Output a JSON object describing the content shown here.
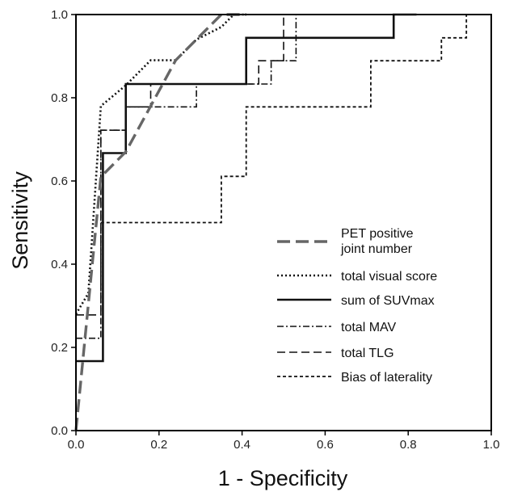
{
  "chart_data": {
    "type": "line",
    "title": "",
    "xlabel": "1 - Specificity",
    "ylabel": "Sensitivity",
    "xlim": [
      0,
      1
    ],
    "ylim": [
      0,
      1
    ],
    "xticks": [
      "0.0",
      "0.2",
      "0.4",
      "0.6",
      "0.8",
      "1.0"
    ],
    "yticks": [
      "0.0",
      "0.2",
      "0.4",
      "0.6",
      "0.8",
      "1.0"
    ],
    "grid": false,
    "legend_position": "bottom-right",
    "series": [
      {
        "name": "PET positive joint number",
        "legend_lines": [
          "PET positive",
          "joint number"
        ],
        "style": "long-dash",
        "color": "#666666",
        "points": [
          [
            0,
            0
          ],
          [
            0.06,
            0.61
          ],
          [
            0.12,
            0.67
          ],
          [
            0.18,
            0.78
          ],
          [
            0.24,
            0.89
          ],
          [
            0.29,
            0.94
          ],
          [
            0.35,
            1.0
          ],
          [
            0.41,
            1.0
          ]
        ]
      },
      {
        "name": "total visual score",
        "style": "dotted",
        "color": "#111111",
        "points": [
          [
            0,
            0.28
          ],
          [
            0.03,
            0.33
          ],
          [
            0.06,
            0.78
          ],
          [
            0.12,
            0.83
          ],
          [
            0.18,
            0.89
          ],
          [
            0.24,
            0.89
          ],
          [
            0.29,
            0.94
          ],
          [
            0.35,
            0.97
          ],
          [
            0.38,
            1.0
          ],
          [
            0.41,
            1.0
          ]
        ]
      },
      {
        "name": "sum of SUVmax",
        "style": "solid",
        "color": "#111111",
        "points": [
          [
            0,
            0.167
          ],
          [
            0.065,
            0.167
          ],
          [
            0.065,
            0.667
          ],
          [
            0.12,
            0.667
          ],
          [
            0.12,
            0.833
          ],
          [
            0.41,
            0.833
          ],
          [
            0.41,
            0.944
          ],
          [
            0.765,
            0.944
          ],
          [
            0.765,
            1.0
          ],
          [
            0.82,
            1.0
          ]
        ]
      },
      {
        "name": "total MAV",
        "style": "dash-dot",
        "color": "#111111",
        "points": [
          [
            0,
            0.222
          ],
          [
            0.06,
            0.222
          ],
          [
            0.06,
            0.722
          ],
          [
            0.12,
            0.722
          ],
          [
            0.12,
            0.778
          ],
          [
            0.29,
            0.778
          ],
          [
            0.29,
            0.833
          ],
          [
            0.47,
            0.833
          ],
          [
            0.47,
            0.889
          ],
          [
            0.53,
            0.889
          ],
          [
            0.53,
            1.0
          ]
        ]
      },
      {
        "name": "total TLG",
        "style": "long-dash",
        "color": "#111111",
        "points": [
          [
            0,
            0.278
          ],
          [
            0.06,
            0.278
          ],
          [
            0.06,
            0.722
          ],
          [
            0.12,
            0.722
          ],
          [
            0.12,
            0.778
          ],
          [
            0.18,
            0.778
          ],
          [
            0.18,
            0.833
          ],
          [
            0.44,
            0.833
          ],
          [
            0.44,
            0.889
          ],
          [
            0.5,
            0.889
          ],
          [
            0.5,
            1.0
          ]
        ]
      },
      {
        "name": "Bias of laterality",
        "style": "short-dash",
        "color": "#111111",
        "points": [
          [
            0.06,
            0.5
          ],
          [
            0.35,
            0.5
          ],
          [
            0.35,
            0.611
          ],
          [
            0.41,
            0.611
          ],
          [
            0.41,
            0.778
          ],
          [
            0.71,
            0.778
          ],
          [
            0.71,
            0.889
          ],
          [
            0.88,
            0.889
          ],
          [
            0.88,
            0.944
          ],
          [
            0.94,
            0.944
          ],
          [
            0.94,
            1.0
          ]
        ]
      }
    ]
  }
}
